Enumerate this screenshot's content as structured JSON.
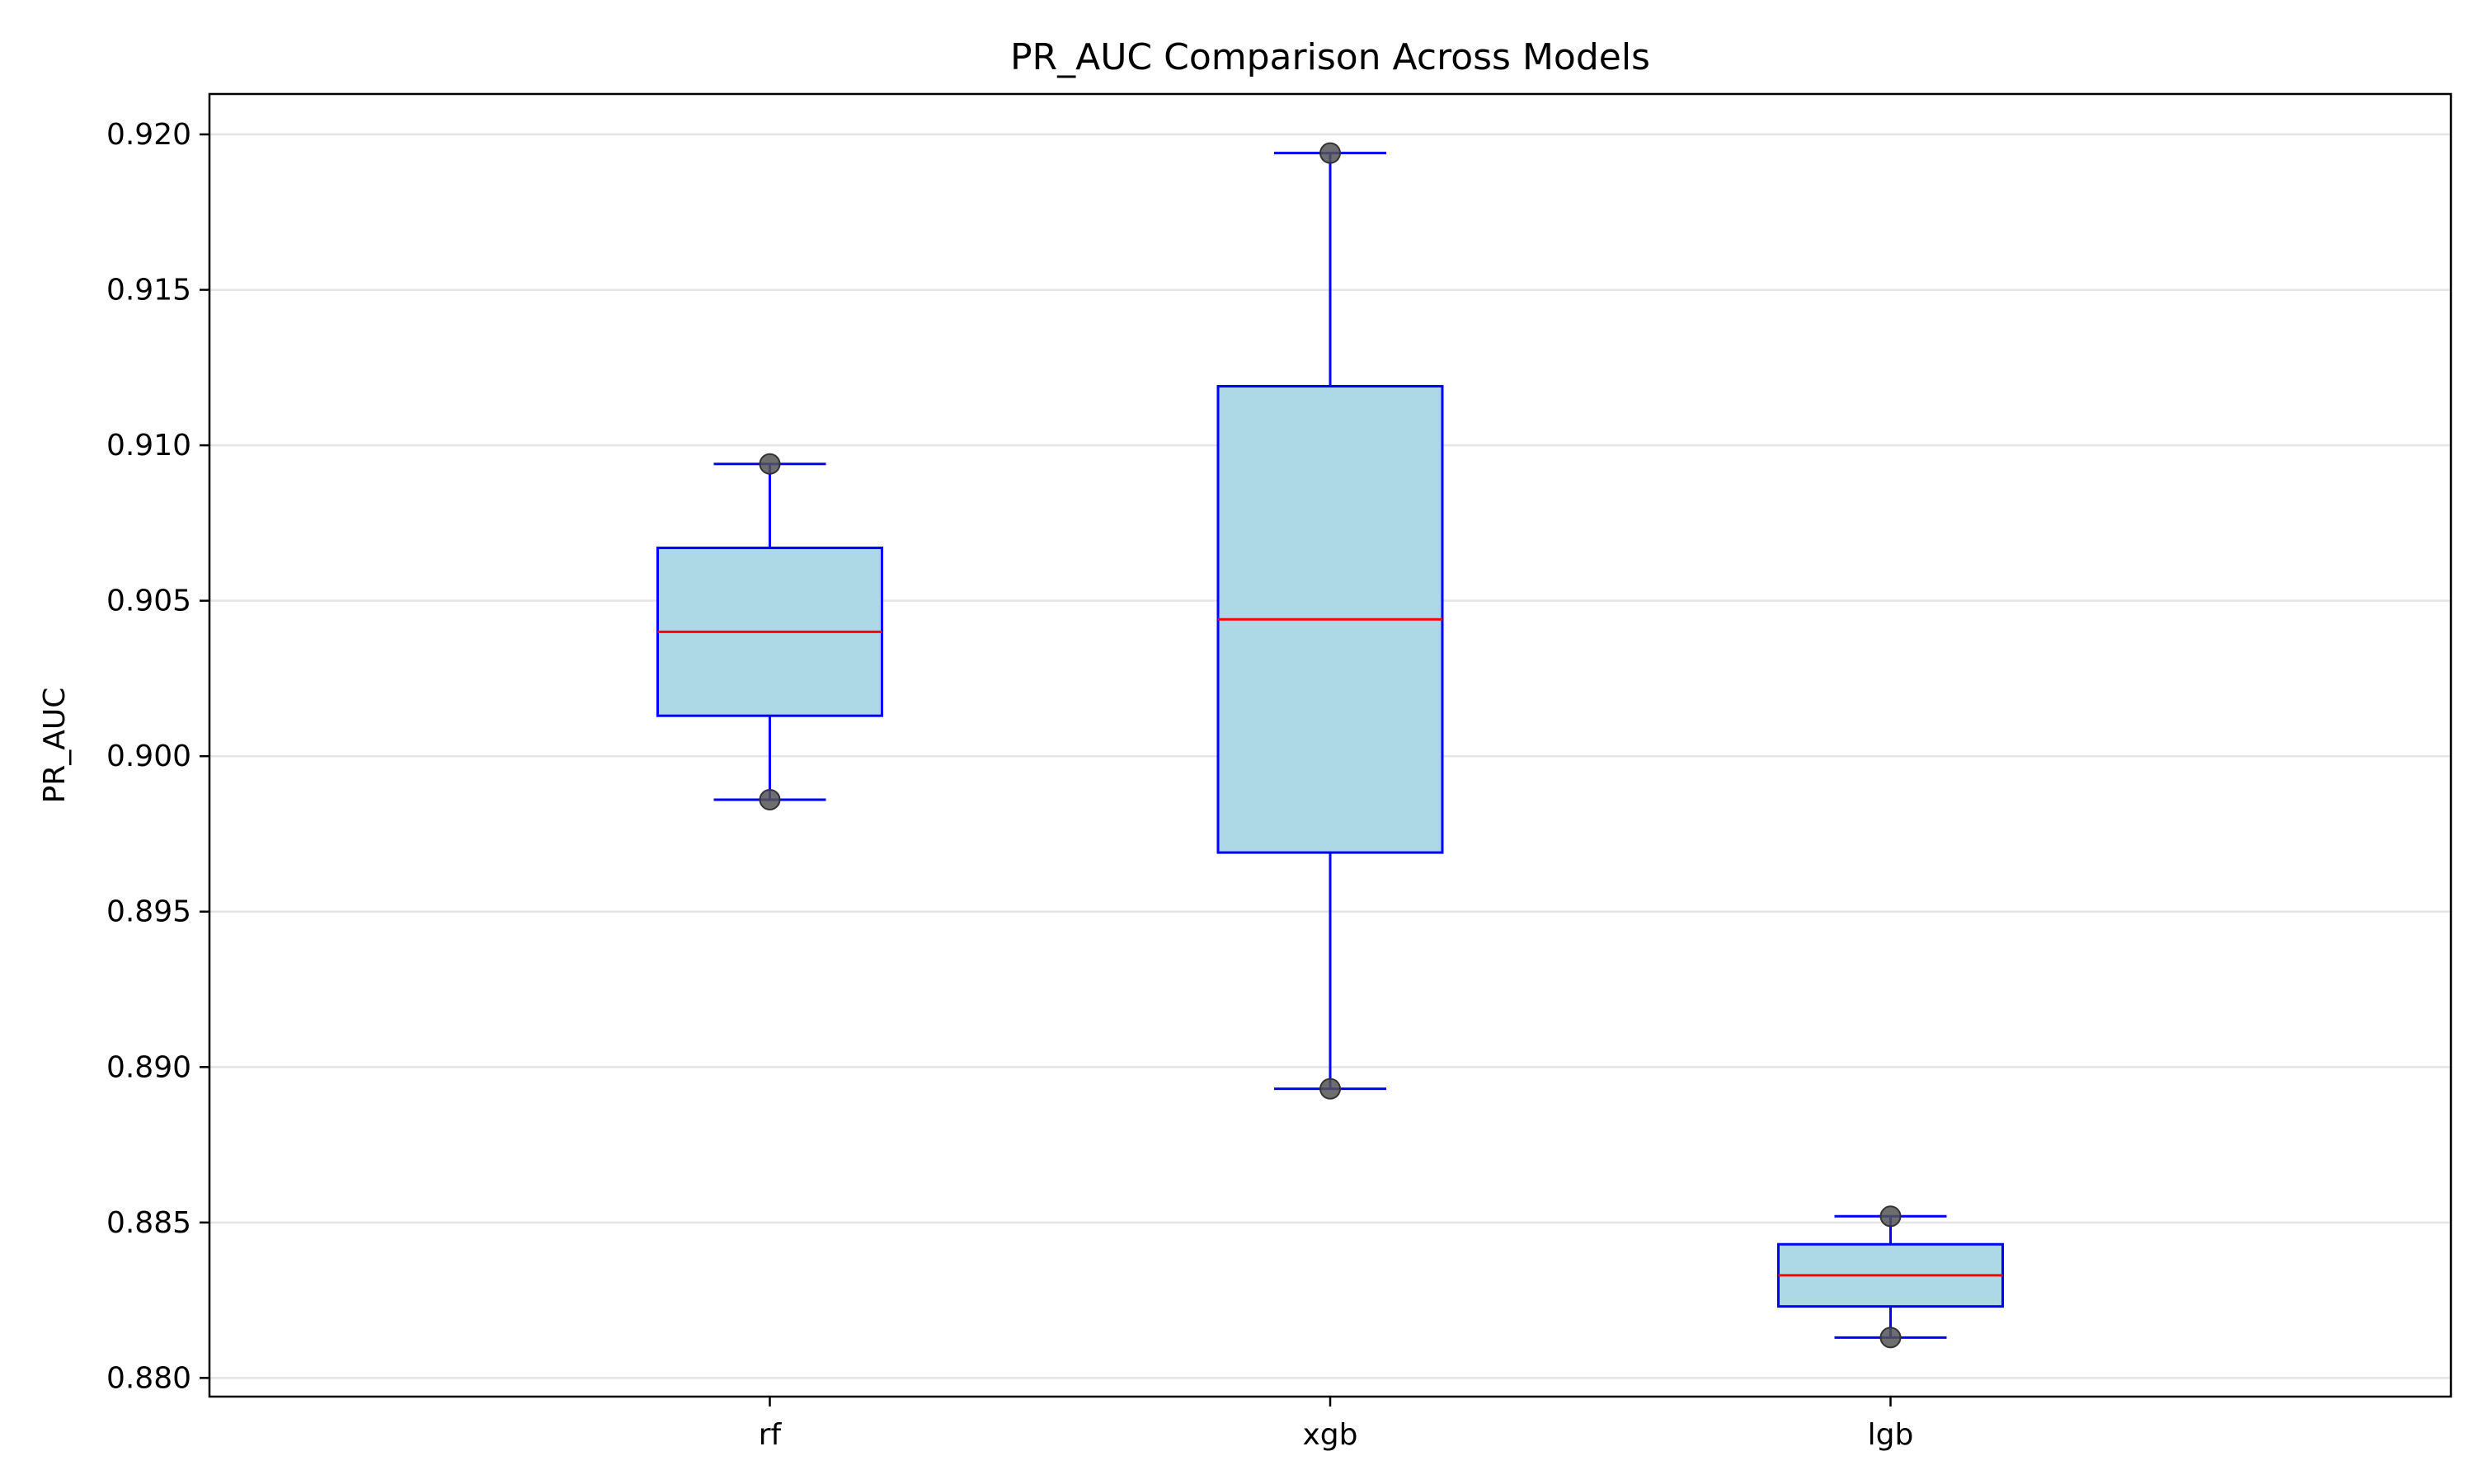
{
  "chart_data": {
    "type": "boxplot",
    "title": "PR_AUC Comparison Across Models",
    "xlabel": "",
    "ylabel": "PR_AUC",
    "ylim": [
      0.8794,
      0.9213
    ],
    "yticks": [
      0.88,
      0.885,
      0.89,
      0.895,
      0.9,
      0.905,
      0.91,
      0.915,
      0.92
    ],
    "ytick_labels": [
      "0.880",
      "0.885",
      "0.890",
      "0.895",
      "0.900",
      "0.905",
      "0.910",
      "0.915",
      "0.920"
    ],
    "grid": "horizontal",
    "categories": [
      "rf",
      "xgb",
      "lgb"
    ],
    "boxes": [
      {
        "name": "rf",
        "whisker_low": 0.8986,
        "q1": 0.9013,
        "median": 0.904,
        "q3": 0.9067,
        "whisker_high": 0.9094,
        "points": [
          0.9094,
          0.8986
        ]
      },
      {
        "name": "xgb",
        "whisker_low": 0.8893,
        "q1": 0.8969,
        "median": 0.9044,
        "q3": 0.9119,
        "whisker_high": 0.9194,
        "points": [
          0.9194,
          0.8893
        ]
      },
      {
        "name": "lgb",
        "whisker_low": 0.8813,
        "q1": 0.8823,
        "median": 0.8833,
        "q3": 0.8843,
        "whisker_high": 0.8852,
        "points": [
          0.8852,
          0.8813
        ]
      }
    ],
    "colors": {
      "box_fill": "#add8e6",
      "box_edge": "#0000ff",
      "median": "#ff0000",
      "points": "#555555",
      "grid": "#e5e5e5",
      "axes": "#000000"
    }
  }
}
